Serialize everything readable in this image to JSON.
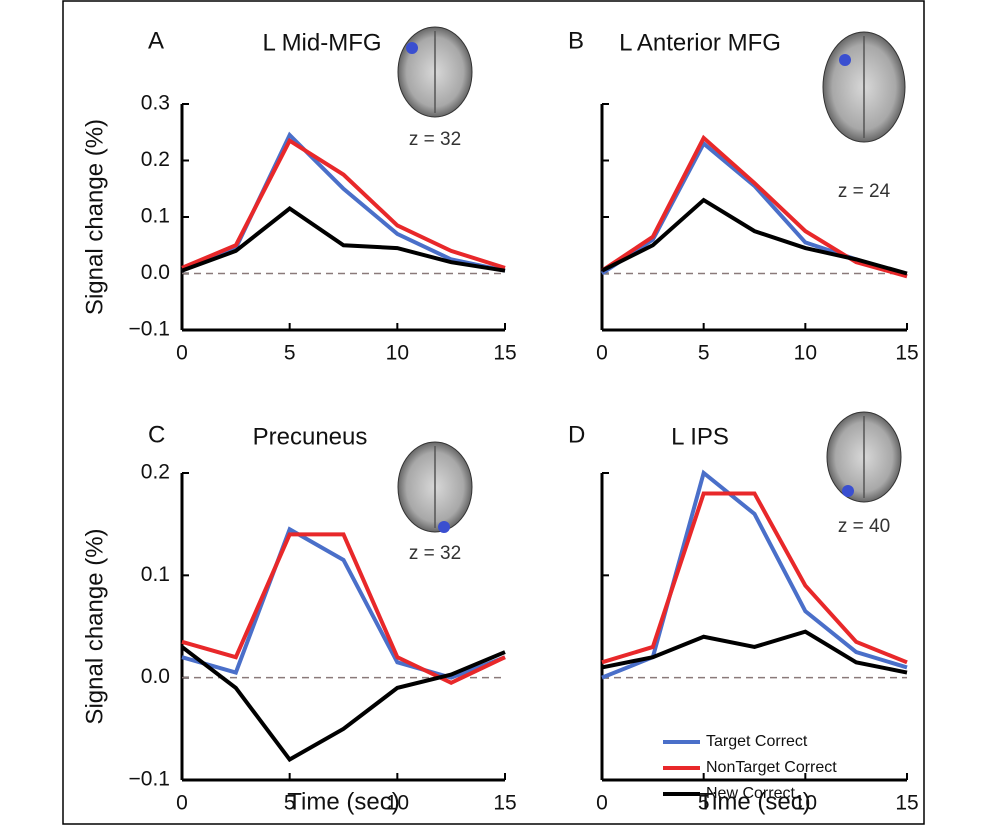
{
  "chart_data": [
    {
      "type": "line",
      "panel": "A",
      "title": "L Mid-MFG",
      "annotation": "z = 32",
      "ylabel": "Signal change (%)",
      "x": [
        0,
        2.5,
        5,
        7.5,
        10,
        12.5,
        15
      ],
      "xlim": [
        0,
        15
      ],
      "xticks": [
        0,
        5,
        10,
        15
      ],
      "ylim": [
        -0.1,
        0.3
      ],
      "yticks": [
        {
          "value": -0.1,
          "label": "−0.1"
        },
        {
          "value": 0,
          "label": "0.0"
        },
        0.1,
        0.2,
        0.3
      ],
      "ytick_labels": true,
      "zero_line": true,
      "series": [
        {
          "color": "#4a6fc9",
          "values": [
            0.005,
            0.045,
            0.245,
            0.15,
            0.07,
            0.025,
            0.005
          ]
        },
        {
          "color": "#e8282a",
          "values": [
            0.01,
            0.05,
            0.235,
            0.175,
            0.085,
            0.04,
            0.01
          ]
        },
        {
          "color": "#000000",
          "values": [
            0.005,
            0.04,
            0.115,
            0.05,
            0.045,
            0.02,
            0.005
          ]
        }
      ]
    },
    {
      "type": "line",
      "panel": "B",
      "title": "L Anterior MFG",
      "annotation": "z = 24",
      "x": [
        0,
        2.5,
        5,
        7.5,
        10,
        12.5,
        15
      ],
      "xlim": [
        0,
        15
      ],
      "xticks": [
        0,
        5,
        10,
        15
      ],
      "ylim": [
        -0.1,
        0.3
      ],
      "yticks": [
        -0.1,
        0,
        0.1,
        0.2,
        0.3
      ],
      "ytick_labels": false,
      "zero_line": true,
      "series": [
        {
          "color": "#4a6fc9",
          "values": [
            0.0,
            0.06,
            0.23,
            0.155,
            0.055,
            0.025,
            -0.005
          ]
        },
        {
          "color": "#e8282a",
          "values": [
            0.005,
            0.065,
            0.24,
            0.16,
            0.075,
            0.02,
            -0.005
          ]
        },
        {
          "color": "#000000",
          "values": [
            0.005,
            0.05,
            0.13,
            0.075,
            0.045,
            0.025,
            0.0
          ]
        }
      ]
    },
    {
      "type": "line",
      "panel": "C",
      "title": "Precuneus",
      "annotation": "z = 32",
      "ylabel": "Signal change (%)",
      "xlabel": "Time (sec)",
      "x": [
        0,
        2.5,
        5,
        7.5,
        10,
        12.5,
        15
      ],
      "xlim": [
        0,
        15
      ],
      "xticks": [
        0,
        5,
        10,
        15
      ],
      "ylim": [
        -0.1,
        0.2
      ],
      "yticks": [
        {
          "value": -0.1,
          "label": "−0.1"
        },
        {
          "value": 0,
          "label": "0.0"
        },
        0.1,
        0.2
      ],
      "ytick_labels": true,
      "zero_line": true,
      "series": [
        {
          "color": "#4a6fc9",
          "values": [
            0.02,
            0.005,
            0.145,
            0.115,
            0.015,
            0.0,
            0.02
          ]
        },
        {
          "color": "#e8282a",
          "values": [
            0.035,
            0.02,
            0.14,
            0.14,
            0.02,
            -0.005,
            0.02
          ]
        },
        {
          "color": "#000000",
          "values": [
            0.03,
            -0.01,
            -0.08,
            -0.05,
            -0.01,
            0.003,
            0.025
          ]
        }
      ]
    },
    {
      "type": "line",
      "panel": "D",
      "title": "L IPS",
      "annotation": "z = 40",
      "xlabel": "Time (sec)",
      "x": [
        0,
        2.5,
        5,
        7.5,
        10,
        12.5,
        15
      ],
      "xlim": [
        0,
        15
      ],
      "xticks": [
        0,
        5,
        10,
        15
      ],
      "ylim": [
        -0.1,
        0.2
      ],
      "yticks": [
        -0.1,
        0,
        0.1,
        0.2
      ],
      "ytick_labels": false,
      "zero_line": true,
      "series": [
        {
          "name": "Target Correct",
          "color": "#4a6fc9",
          "values": [
            0.0,
            0.02,
            0.2,
            0.16,
            0.065,
            0.025,
            0.01
          ]
        },
        {
          "name": "NonTarget Correct",
          "color": "#e8282a",
          "values": [
            0.015,
            0.03,
            0.18,
            0.18,
            0.09,
            0.035,
            0.015
          ]
        },
        {
          "name": "New Correct",
          "color": "#000000",
          "values": [
            0.01,
            0.02,
            0.04,
            0.03,
            0.045,
            0.015,
            0.005
          ]
        }
      ]
    }
  ]
}
